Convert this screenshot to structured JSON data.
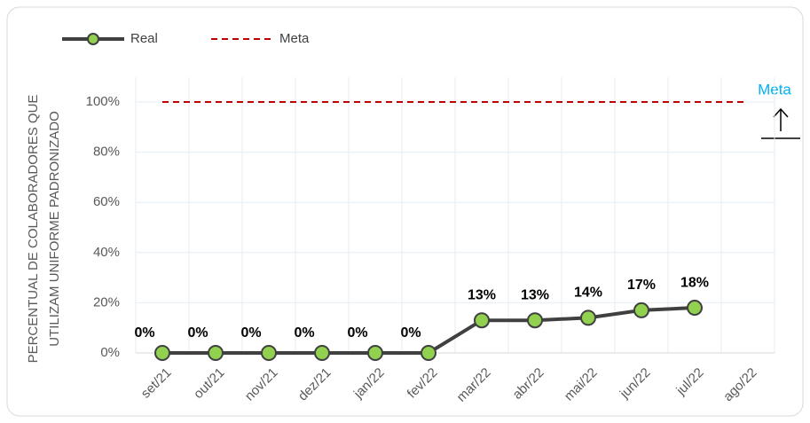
{
  "chart_data": {
    "type": "line",
    "categories": [
      "set/21",
      "out/21",
      "nov/21",
      "dez/21",
      "jan/22",
      "fev/22",
      "mar/22",
      "abr/22",
      "mai/22",
      "jun/22",
      "jul/22",
      "ago/22"
    ],
    "series": [
      {
        "name": "Real",
        "color": "#404040",
        "marker_color": "#92d050",
        "values": [
          0,
          0,
          0,
          0,
          0,
          0,
          13,
          13,
          14,
          17,
          18,
          null
        ],
        "value_labels": [
          "0%",
          "0%",
          "0%",
          "0%",
          "0%",
          "0%",
          "13%",
          "13%",
          "14%",
          "17%",
          "18%",
          null
        ]
      },
      {
        "name": "Meta",
        "color": "#c00000",
        "dashed": true,
        "values": [
          100,
          100,
          100,
          100,
          100,
          100,
          100,
          100,
          100,
          100,
          100,
          100
        ]
      }
    ],
    "y_axis_label": [
      "PERCENTUAL DE COLABORADORES QUE",
      "UTILIZAM UNIFORME PADRONIZADO"
    ],
    "annotation": "Meta",
    "ylim": [
      0,
      100
    ],
    "yticks": [
      {
        "value": 0,
        "label": "0%"
      },
      {
        "value": 20,
        "label": "20%"
      },
      {
        "value": 40,
        "label": "40%"
      },
      {
        "value": 60,
        "label": "60%"
      },
      {
        "value": 80,
        "label": "80%"
      },
      {
        "value": 100,
        "label": "100%"
      }
    ],
    "grid": true,
    "legend": "top-left"
  }
}
